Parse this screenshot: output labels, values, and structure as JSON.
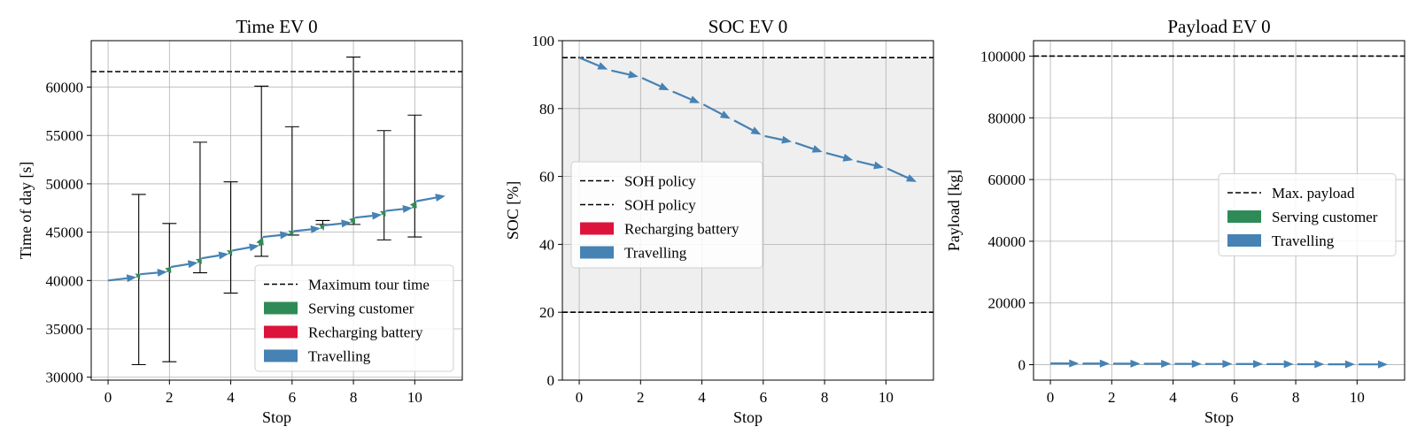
{
  "chart_data": [
    {
      "type": "line",
      "title": "Time EV 0",
      "xlabel": "Stop",
      "ylabel": "Time of day [s]",
      "xlim": [
        -0.55,
        11.55
      ],
      "ylim": [
        29700,
        64800
      ],
      "xticks": [
        0,
        2,
        4,
        6,
        8,
        10
      ],
      "yticks": [
        30000,
        35000,
        40000,
        45000,
        50000,
        55000,
        60000
      ],
      "grid": true,
      "hlines": [
        {
          "y": 61600,
          "label": "Maximum tour time",
          "style": "dashed"
        }
      ],
      "series": [
        {
          "name": "Travelling",
          "color": "#4682b4",
          "points": [
            {
              "x": 0,
              "y": 40000
            },
            {
              "x": 0.93,
              "y": 40350
            },
            {
              "x": 1.05,
              "y": 40650
            },
            {
              "x": 1.93,
              "y": 40900
            },
            {
              "x": 2.05,
              "y": 41400
            },
            {
              "x": 2.93,
              "y": 41850
            },
            {
              "x": 3.05,
              "y": 42300
            },
            {
              "x": 3.93,
              "y": 42750
            },
            {
              "x": 4.05,
              "y": 43100
            },
            {
              "x": 4.93,
              "y": 43600
            },
            {
              "x": 5.05,
              "y": 44500
            },
            {
              "x": 5.93,
              "y": 44800
            },
            {
              "x": 6.05,
              "y": 45100
            },
            {
              "x": 6.93,
              "y": 45400
            },
            {
              "x": 7.05,
              "y": 45700
            },
            {
              "x": 7.93,
              "y": 46000
            },
            {
              "x": 8.05,
              "y": 46500
            },
            {
              "x": 8.93,
              "y": 46800
            },
            {
              "x": 9.05,
              "y": 47200
            },
            {
              "x": 9.93,
              "y": 47500
            },
            {
              "x": 10.05,
              "y": 48200
            },
            {
              "x": 11,
              "y": 48750
            }
          ]
        },
        {
          "name": "Serving customer",
          "color": "#2e8b57",
          "points": [
            {
              "x": 0.93,
              "y": 40350
            },
            {
              "x": 1.05,
              "y": 40650
            },
            {
              "x": 1.93,
              "y": 40900
            },
            {
              "x": 2.05,
              "y": 41400
            },
            {
              "x": 2.93,
              "y": 41850
            },
            {
              "x": 3.05,
              "y": 42300
            },
            {
              "x": 3.93,
              "y": 42750
            },
            {
              "x": 4.05,
              "y": 43100
            },
            {
              "x": 4.93,
              "y": 43600
            },
            {
              "x": 5.05,
              "y": 44500
            },
            {
              "x": 5.93,
              "y": 44800
            },
            {
              "x": 6.05,
              "y": 45100
            },
            {
              "x": 6.93,
              "y": 45400
            },
            {
              "x": 7.05,
              "y": 45700
            },
            {
              "x": 7.93,
              "y": 46000
            },
            {
              "x": 8.05,
              "y": 46500
            },
            {
              "x": 8.93,
              "y": 46800
            },
            {
              "x": 9.05,
              "y": 47200
            },
            {
              "x": 9.93,
              "y": 47500
            },
            {
              "x": 10.05,
              "y": 48200
            }
          ]
        }
      ],
      "time_windows": [
        {
          "x": 1,
          "low": 31300,
          "high": 48900
        },
        {
          "x": 2,
          "low": 31600,
          "high": 45900
        },
        {
          "x": 3,
          "low": 40800,
          "high": 54300
        },
        {
          "x": 4,
          "low": 38700,
          "high": 50200
        },
        {
          "x": 5,
          "low": 42500,
          "high": 60100
        },
        {
          "x": 6,
          "low": 44700,
          "high": 55900
        },
        {
          "x": 7,
          "low": 45800,
          "high": 46200
        },
        {
          "x": 8,
          "low": 45800,
          "high": 63100
        },
        {
          "x": 9,
          "low": 44200,
          "high": 55500
        },
        {
          "x": 10,
          "low": 44500,
          "high": 57100
        }
      ],
      "legend": {
        "placement": "lower right",
        "entries": [
          {
            "label": "Maximum tour time",
            "kind": "dashed",
            "color": "#000000"
          },
          {
            "label": "Serving customer",
            "kind": "patch",
            "color": "#2e8b57"
          },
          {
            "label": "Recharging battery",
            "kind": "patch",
            "color": "#dc143c"
          },
          {
            "label": "Travelling",
            "kind": "patch",
            "color": "#4682b4"
          }
        ]
      }
    },
    {
      "type": "line",
      "title": "SOC EV 0",
      "xlabel": "Stop",
      "ylabel": "SOC [%]",
      "xlim": [
        -0.55,
        11.55
      ],
      "ylim": [
        0,
        100
      ],
      "xticks": [
        0,
        2,
        4,
        6,
        8,
        10
      ],
      "yticks": [
        0,
        20,
        40,
        60,
        80,
        100
      ],
      "grid": true,
      "shaded_band": {
        "from": 20,
        "to": 95,
        "color": "#efefef"
      },
      "hlines": [
        {
          "y": 95,
          "label": "SOH policy",
          "style": "dashed"
        },
        {
          "y": 20,
          "label": "SOH policy",
          "style": "dashed"
        }
      ],
      "series": [
        {
          "name": "Travelling",
          "color": "#4682b4",
          "points": [
            {
              "x": 0,
              "y": 95
            },
            {
              "x": 0.93,
              "y": 91.5
            },
            {
              "x": 1.05,
              "y": 91.2
            },
            {
              "x": 1.93,
              "y": 89.4
            },
            {
              "x": 2.05,
              "y": 89.0
            },
            {
              "x": 2.93,
              "y": 85.4
            },
            {
              "x": 3.05,
              "y": 85.0
            },
            {
              "x": 3.93,
              "y": 81.6
            },
            {
              "x": 4.05,
              "y": 81.2
            },
            {
              "x": 4.93,
              "y": 77.0
            },
            {
              "x": 5.05,
              "y": 76.5
            },
            {
              "x": 5.93,
              "y": 72.3
            },
            {
              "x": 6.05,
              "y": 71.9
            },
            {
              "x": 6.93,
              "y": 70.2
            },
            {
              "x": 7.05,
              "y": 69.9
            },
            {
              "x": 7.93,
              "y": 67.2
            },
            {
              "x": 8.05,
              "y": 66.9
            },
            {
              "x": 8.93,
              "y": 64.8
            },
            {
              "x": 9.05,
              "y": 64.5
            },
            {
              "x": 9.93,
              "y": 62.6
            },
            {
              "x": 10.05,
              "y": 62.3
            },
            {
              "x": 11,
              "y": 58.4
            }
          ]
        }
      ],
      "legend": {
        "placement": "center left",
        "entries": [
          {
            "label": "SOH policy",
            "kind": "dashed",
            "color": "#000000"
          },
          {
            "label": "SOH policy",
            "kind": "dashed",
            "color": "#000000"
          },
          {
            "label": "Recharging battery",
            "kind": "patch",
            "color": "#dc143c"
          },
          {
            "label": "Travelling",
            "kind": "patch",
            "color": "#4682b4"
          }
        ]
      }
    },
    {
      "type": "line",
      "title": "Payload EV 0",
      "xlabel": "Stop",
      "ylabel": "Payload [kg]",
      "xlim": [
        -0.55,
        11.55
      ],
      "ylim": [
        -5000,
        105000
      ],
      "xticks": [
        0,
        2,
        4,
        6,
        8,
        10
      ],
      "yticks": [
        0,
        20000,
        40000,
        60000,
        80000,
        100000
      ],
      "grid": true,
      "hlines": [
        {
          "y": 100000,
          "label": "Max. payload",
          "style": "dashed"
        }
      ],
      "series": [
        {
          "name": "Travelling",
          "color": "#4682b4",
          "points": [
            {
              "x": 0,
              "y": 400
            },
            {
              "x": 0.93,
              "y": 400
            },
            {
              "x": 1.05,
              "y": 370
            },
            {
              "x": 1.93,
              "y": 370
            },
            {
              "x": 2.05,
              "y": 340
            },
            {
              "x": 2.93,
              "y": 340
            },
            {
              "x": 3.05,
              "y": 310
            },
            {
              "x": 3.93,
              "y": 310
            },
            {
              "x": 4.05,
              "y": 280
            },
            {
              "x": 4.93,
              "y": 280
            },
            {
              "x": 5.05,
              "y": 250
            },
            {
              "x": 5.93,
              "y": 250
            },
            {
              "x": 6.05,
              "y": 220
            },
            {
              "x": 6.93,
              "y": 220
            },
            {
              "x": 7.05,
              "y": 190
            },
            {
              "x": 7.93,
              "y": 190
            },
            {
              "x": 8.05,
              "y": 160
            },
            {
              "x": 8.93,
              "y": 160
            },
            {
              "x": 9.05,
              "y": 130
            },
            {
              "x": 9.93,
              "y": 130
            },
            {
              "x": 10.05,
              "y": 100
            },
            {
              "x": 11,
              "y": 100
            }
          ]
        }
      ],
      "legend": {
        "placement": "center right",
        "entries": [
          {
            "label": "Max. payload",
            "kind": "dashed",
            "color": "#000000"
          },
          {
            "label": "Serving customer",
            "kind": "patch",
            "color": "#2e8b57"
          },
          {
            "label": "Travelling",
            "kind": "patch",
            "color": "#4682b4"
          }
        ]
      }
    }
  ]
}
